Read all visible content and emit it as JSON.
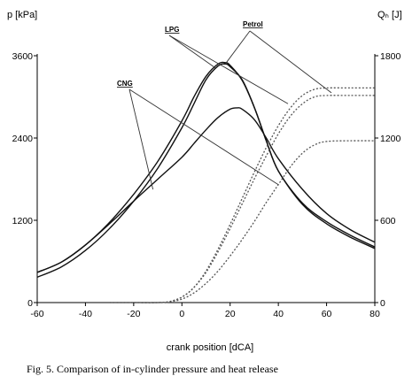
{
  "chart_data": {
    "type": "line",
    "left_axis_label": "p [kPa]",
    "right_axis_label": "Qₕ [J]",
    "xlabel": "crank position [dCA]",
    "xlim": [
      -60,
      80
    ],
    "left_ylim": [
      0,
      3600
    ],
    "right_ylim": [
      0,
      1800
    ],
    "x_ticks": [
      "-60",
      "-40",
      "-20",
      "0",
      "20",
      "40",
      "60",
      "80"
    ],
    "left_ticks": [
      "0",
      "1200",
      "2400",
      "3600"
    ],
    "right_ticks": [
      "0",
      "600",
      "1200",
      "1800"
    ],
    "legend": "labels on curves",
    "grid": false,
    "pressure_series": [
      {
        "name": "Petrol",
        "axis": "left",
        "x": [
          -60,
          -50,
          -40,
          -30,
          -20,
          -10,
          0,
          5,
          10,
          15,
          18,
          20,
          25,
          30,
          35,
          40,
          50,
          60,
          70,
          80
        ],
        "y": [
          370,
          520,
          760,
          1080,
          1480,
          1960,
          2550,
          2900,
          3250,
          3450,
          3480,
          3440,
          3250,
          2850,
          2360,
          1920,
          1450,
          1180,
          980,
          810
        ]
      },
      {
        "name": "LPG",
        "axis": "left",
        "x": [
          -60,
          -50,
          -40,
          -30,
          -20,
          -10,
          0,
          5,
          10,
          15,
          18,
          20,
          25,
          30,
          35,
          40,
          50,
          60,
          70,
          80
        ],
        "y": [
          440,
          590,
          840,
          1170,
          1580,
          2060,
          2650,
          3000,
          3300,
          3480,
          3500,
          3460,
          3240,
          2850,
          2360,
          1920,
          1430,
          1150,
          950,
          790
        ]
      },
      {
        "name": "CNG",
        "axis": "left",
        "x": [
          -60,
          -50,
          -40,
          -30,
          -20,
          -10,
          0,
          5,
          10,
          15,
          20,
          23,
          25,
          30,
          35,
          40,
          50,
          60,
          70,
          80
        ],
        "y": [
          440,
          590,
          840,
          1150,
          1480,
          1800,
          2120,
          2320,
          2520,
          2700,
          2820,
          2840,
          2820,
          2670,
          2400,
          2100,
          1650,
          1300,
          1060,
          880
        ]
      }
    ],
    "heat_release_series": [
      {
        "name": "Petrol",
        "axis": "right",
        "x": [
          -30,
          -20,
          -10,
          -5,
          0,
          5,
          10,
          15,
          20,
          25,
          30,
          35,
          40,
          45,
          50,
          55,
          60,
          70,
          80
        ],
        "y": [
          0,
          0,
          0,
          8,
          40,
          110,
          220,
          370,
          540,
          720,
          900,
          1070,
          1230,
          1360,
          1450,
          1500,
          1510,
          1510,
          1510
        ]
      },
      {
        "name": "LPG",
        "axis": "right",
        "x": [
          -30,
          -20,
          -10,
          -5,
          0,
          5,
          10,
          15,
          20,
          25,
          30,
          35,
          40,
          45,
          50,
          55,
          60,
          70,
          80
        ],
        "y": [
          0,
          0,
          0,
          8,
          40,
          110,
          230,
          390,
          570,
          760,
          950,
          1130,
          1290,
          1420,
          1510,
          1555,
          1565,
          1565,
          1565
        ]
      },
      {
        "name": "CNG",
        "axis": "right",
        "x": [
          -30,
          -20,
          -10,
          -5,
          0,
          5,
          10,
          15,
          20,
          25,
          30,
          35,
          40,
          45,
          50,
          55,
          60,
          70,
          80
        ],
        "y": [
          0,
          0,
          0,
          5,
          25,
          70,
          140,
          230,
          340,
          460,
          590,
          730,
          860,
          990,
          1090,
          1150,
          1175,
          1180,
          1180
        ]
      }
    ],
    "labels": {
      "lpg": "LPG",
      "petrol": "Petrol",
      "cng": "CNG"
    }
  },
  "caption": "Fig. 5. Comparison of in-cylinder pressure and heat release"
}
